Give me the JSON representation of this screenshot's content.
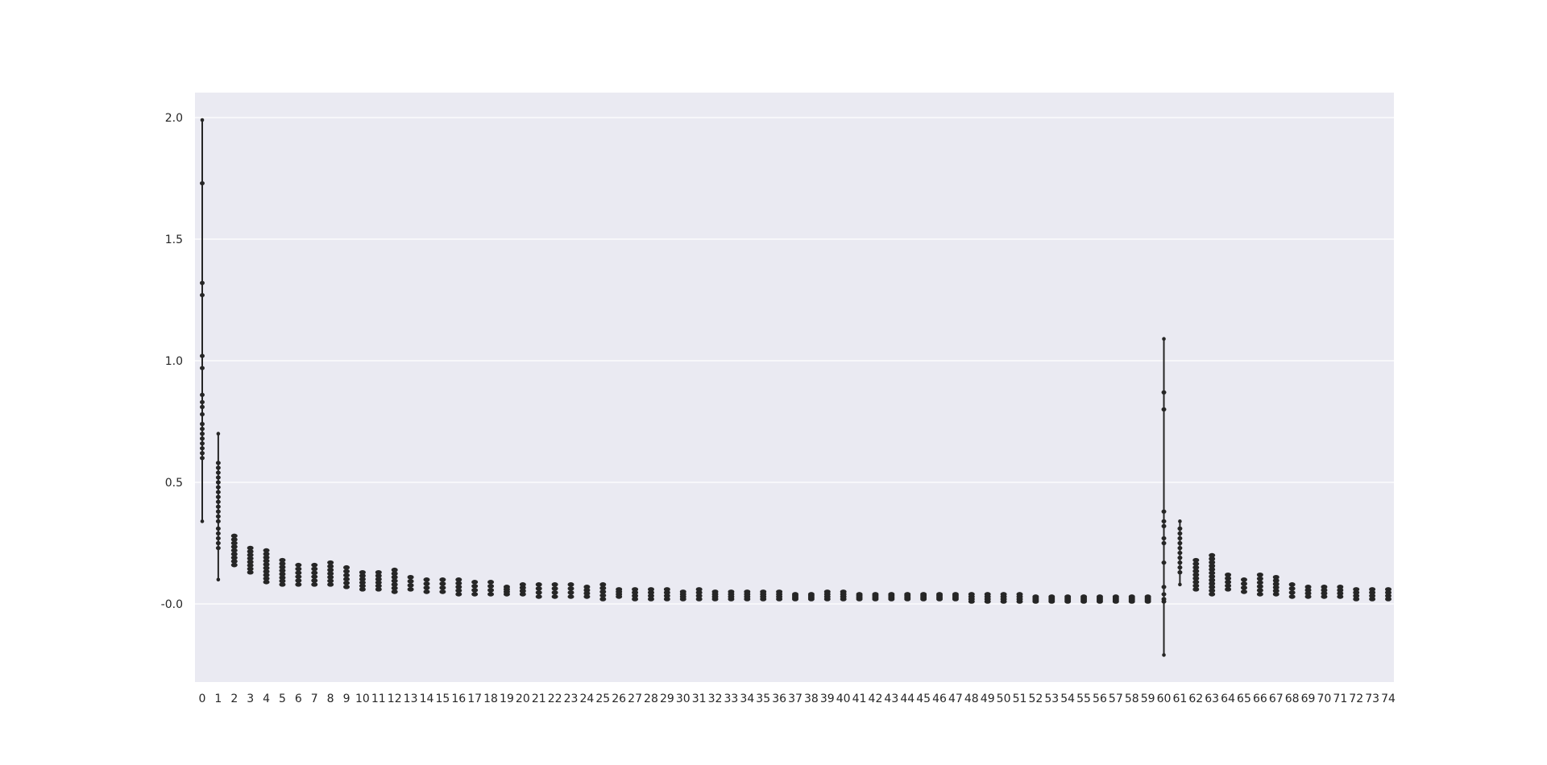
{
  "chart_data": {
    "type": "strip",
    "title": "",
    "xlabel": "",
    "ylabel": "",
    "ylim": [
      -0.325,
      2.1
    ],
    "yticks": [
      "-0.0",
      "0.5",
      "1.0",
      "1.5",
      "2.0"
    ],
    "ytick_values": [
      0.0,
      0.5,
      1.0,
      1.5,
      2.0
    ],
    "grid": true,
    "colors": {
      "plot_background": "#eaeaf2",
      "grid": "#ffffff",
      "marks": "#262626"
    },
    "categories": [
      "0",
      "1",
      "2",
      "3",
      "4",
      "5",
      "6",
      "7",
      "8",
      "9",
      "10",
      "11",
      "12",
      "13",
      "14",
      "15",
      "16",
      "17",
      "18",
      "19",
      "20",
      "21",
      "22",
      "23",
      "24",
      "25",
      "26",
      "27",
      "28",
      "29",
      "30",
      "31",
      "32",
      "33",
      "34",
      "35",
      "36",
      "37",
      "38",
      "39",
      "40",
      "41",
      "42",
      "43",
      "44",
      "45",
      "46",
      "47",
      "48",
      "49",
      "50",
      "51",
      "52",
      "53",
      "54",
      "55",
      "56",
      "57",
      "58",
      "59",
      "60",
      "61",
      "62",
      "63",
      "64",
      "65",
      "66",
      "67",
      "68",
      "69",
      "70",
      "71",
      "72",
      "73",
      "74"
    ],
    "ranges": [
      [
        0.34,
        1.99
      ],
      [
        0.1,
        0.7
      ],
      [
        0.16,
        0.28
      ],
      [
        0.13,
        0.23
      ],
      [
        0.09,
        0.22
      ],
      [
        0.08,
        0.18
      ],
      [
        0.08,
        0.16
      ],
      [
        0.08,
        0.16
      ],
      [
        0.08,
        0.17
      ],
      [
        0.07,
        0.15
      ],
      [
        0.06,
        0.13
      ],
      [
        0.06,
        0.13
      ],
      [
        0.05,
        0.14
      ],
      [
        0.06,
        0.11
      ],
      [
        0.05,
        0.1
      ],
      [
        0.05,
        0.1
      ],
      [
        0.04,
        0.1
      ],
      [
        0.04,
        0.09
      ],
      [
        0.04,
        0.09
      ],
      [
        0.04,
        0.07
      ],
      [
        0.04,
        0.08
      ],
      [
        0.03,
        0.08
      ],
      [
        0.03,
        0.08
      ],
      [
        0.03,
        0.08
      ],
      [
        0.03,
        0.07
      ],
      [
        0.02,
        0.08
      ],
      [
        0.03,
        0.06
      ],
      [
        0.02,
        0.06
      ],
      [
        0.02,
        0.06
      ],
      [
        0.02,
        0.06
      ],
      [
        0.02,
        0.05
      ],
      [
        0.02,
        0.06
      ],
      [
        0.02,
        0.05
      ],
      [
        0.02,
        0.05
      ],
      [
        0.02,
        0.05
      ],
      [
        0.02,
        0.05
      ],
      [
        0.02,
        0.05
      ],
      [
        0.02,
        0.04
      ],
      [
        0.02,
        0.04
      ],
      [
        0.02,
        0.05
      ],
      [
        0.02,
        0.05
      ],
      [
        0.02,
        0.04
      ],
      [
        0.02,
        0.04
      ],
      [
        0.02,
        0.04
      ],
      [
        0.02,
        0.04
      ],
      [
        0.02,
        0.04
      ],
      [
        0.02,
        0.04
      ],
      [
        0.02,
        0.04
      ],
      [
        0.01,
        0.04
      ],
      [
        0.01,
        0.04
      ],
      [
        0.01,
        0.04
      ],
      [
        0.01,
        0.04
      ],
      [
        0.01,
        0.03
      ],
      [
        0.01,
        0.03
      ],
      [
        0.01,
        0.03
      ],
      [
        0.01,
        0.03
      ],
      [
        0.01,
        0.03
      ],
      [
        0.01,
        0.03
      ],
      [
        0.01,
        0.03
      ],
      [
        0.01,
        0.03
      ],
      [
        -0.21,
        1.09
      ],
      [
        0.08,
        0.34
      ],
      [
        0.06,
        0.18
      ],
      [
        0.04,
        0.2
      ],
      [
        0.06,
        0.12
      ],
      [
        0.05,
        0.1
      ],
      [
        0.04,
        0.12
      ],
      [
        0.04,
        0.11
      ],
      [
        0.03,
        0.08
      ],
      [
        0.03,
        0.07
      ],
      [
        0.03,
        0.07
      ],
      [
        0.03,
        0.07
      ],
      [
        0.02,
        0.06
      ],
      [
        0.02,
        0.06
      ],
      [
        0.02,
        0.06
      ]
    ],
    "outlier_points": [
      {
        "x": "0",
        "y": [
          1.73,
          1.32,
          1.27,
          1.02,
          0.97,
          0.86,
          0.83,
          0.81,
          0.78,
          0.74,
          0.72,
          0.7,
          0.68,
          0.66,
          0.64,
          0.62,
          0.6
        ]
      },
      {
        "x": "1",
        "y": [
          0.58,
          0.56,
          0.54,
          0.52,
          0.5,
          0.48,
          0.46,
          0.44,
          0.42,
          0.4,
          0.38,
          0.36,
          0.34,
          0.31,
          0.29,
          0.27,
          0.25,
          0.23
        ]
      },
      {
        "x": "60",
        "y": [
          0.87,
          0.8,
          0.38,
          0.34,
          0.32,
          0.27,
          0.25,
          0.17,
          0.07,
          0.04,
          0.02,
          0.01
        ]
      },
      {
        "x": "61",
        "y": [
          0.31,
          0.29,
          0.27,
          0.25,
          0.23,
          0.21,
          0.19,
          0.17,
          0.15,
          0.13
        ]
      },
      {
        "x": "63",
        "y": [
          0.19,
          0.17,
          0.15,
          0.13,
          0.11,
          0.09,
          0.07
        ]
      }
    ]
  }
}
